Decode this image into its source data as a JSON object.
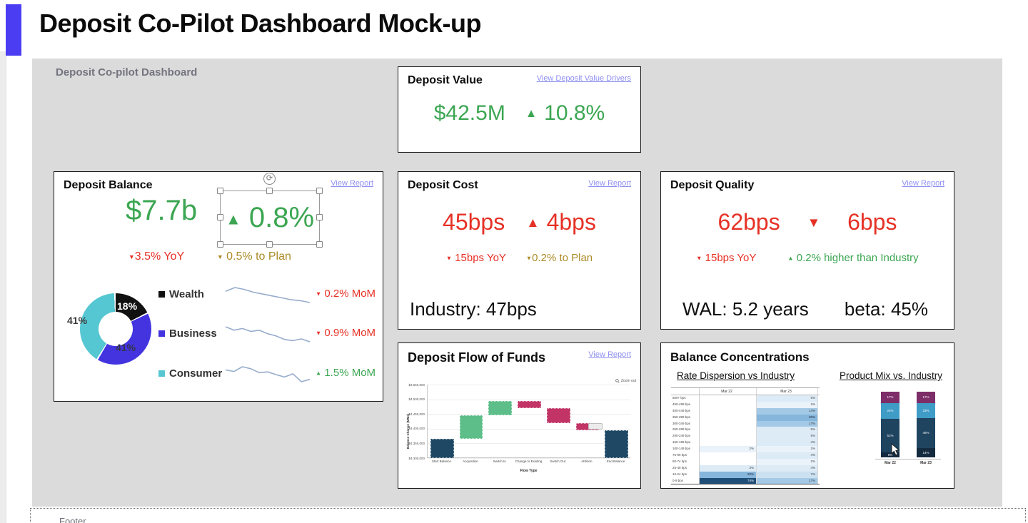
{
  "page": {
    "title": "Deposit Co-Pilot Dashboard Mock-up"
  },
  "canvas": {
    "label": "Deposit Co-pilot Dashboard"
  },
  "footer": {
    "label": "Footer"
  },
  "cards": {
    "deposit_value": {
      "title": "Deposit Value",
      "link": "View Deposit Value Drivers",
      "value": "$42.5M",
      "delta_icon": "▲",
      "delta": "10.8%"
    },
    "deposit_balance": {
      "title": "Deposit Balance",
      "link": "View Report",
      "value": "$7.7b",
      "delta_icon": "▲",
      "delta": "0.8%",
      "yoy_icon": "▼",
      "yoy": "3.5% YoY",
      "plan_icon": "▼",
      "plan": "0.5% to Plan",
      "rows": [
        {
          "label": "Wealth",
          "change_icon": "▼",
          "change": "0.2% MoM"
        },
        {
          "label": "Business",
          "change_icon": "▼",
          "change": "0.9% MoM"
        },
        {
          "label": "Consumer",
          "change_icon": "▲",
          "change": "1.5% MoM"
        }
      ]
    },
    "deposit_cost": {
      "title": "Deposit Cost",
      "link": "View Report",
      "value": "45bps",
      "delta_icon": "▲",
      "delta": "4bps",
      "yoy_icon": "▼",
      "yoy": "15bps YoY",
      "plan_icon": "▼",
      "plan": "0.2% to Plan",
      "industry": "Industry: 47bps"
    },
    "deposit_quality": {
      "title": "Deposit Quality",
      "link": "View Report",
      "value": "62bps",
      "delta_icon": "▼",
      "delta": "6bps",
      "yoy_icon": "▼",
      "yoy": "15bps YoY",
      "industry_icon": "▲",
      "industry_note": "0.2% higher than Industry",
      "wal": "WAL: 5.2 years",
      "beta": "beta: 45%"
    },
    "flow_of_funds": {
      "title": "Deposit Flow of Funds",
      "link": "View Report",
      "zoom_out": "Zoom out"
    },
    "balance_concentrations": {
      "title": "Balance Concentrations",
      "left_subtitle": "Rate Dispersion vs Industry",
      "right_subtitle": "Product Mix vs. Industry"
    }
  },
  "colors": {
    "accent": "#4B3DF2",
    "green": "#3CA652",
    "red": "#E63126",
    "olive": "#AC8B26",
    "link": "#8F8FF2",
    "canvas": "#DBDBDB"
  },
  "chart_data": [
    {
      "id": "balance_mix_donut",
      "type": "pie",
      "labels": [
        "Wealth",
        "Business",
        "Consumer"
      ],
      "values": [
        18,
        41,
        41
      ],
      "colors": [
        "#111111",
        "#4334E0",
        "#55C7D2"
      ],
      "slice_label_texts": [
        "18%",
        "41%",
        "41%"
      ],
      "legend_position": "right"
    },
    {
      "id": "balance_sparklines",
      "type": "line",
      "color": "#96ACCC",
      "series": [
        {
          "name": "Wealth",
          "values": [
            58,
            62,
            60,
            57,
            55,
            53,
            51,
            49,
            48,
            46
          ],
          "change": "-0.2% MoM"
        },
        {
          "name": "Business",
          "values": [
            60,
            54,
            57,
            52,
            54,
            48,
            44,
            38,
            36,
            39,
            34
          ],
          "change": "-0.9% MoM"
        },
        {
          "name": "Consumer",
          "values": [
            52,
            48,
            60,
            55,
            45,
            47,
            40,
            34,
            42,
            22,
            28
          ],
          "change": "+1.5% MoM"
        }
      ]
    },
    {
      "id": "flow_waterfall",
      "type": "bar",
      "title": "Deposit Flow of Funds",
      "xlabel": "Flow Type",
      "ylabel": "Balance Change (MMs)",
      "categories": [
        "Start Balance",
        "Acquisition",
        "Switch In",
        "Change to Existing",
        "Switch Out",
        "Attrition",
        "End Balance"
      ],
      "bar_type": [
        "total",
        "increase",
        "increase",
        "decrease",
        "decrease",
        "decrease",
        "total"
      ],
      "values": [
        4365000,
        80000,
        50000,
        -25000,
        -50000,
        -25000,
        4395000
      ],
      "cumulative": [
        4365000,
        4445000,
        4495000,
        4470000,
        4420000,
        4395000,
        4395000
      ],
      "ylim": [
        4300000,
        4550000
      ],
      "yticks": [
        "$4,550,000",
        "$4,500,000",
        "$4,450,000",
        "$4,400,000",
        "$4,350,000",
        "$4,300,000"
      ],
      "colors": {
        "total": "#1E4864",
        "increase": "#5DBE89",
        "decrease": "#C23465"
      },
      "grid": true
    },
    {
      "id": "rate_dispersion_heatmap",
      "type": "heatmap",
      "columns": [
        "Mar 22",
        "Mar 23"
      ],
      "rows": [
        "500+ bps",
        "450-499 bps",
        "400-449 bps",
        "350-399 bps",
        "300-349 bps",
        "250-299 bps",
        "200-249 bps",
        "150-199 bps",
        "100-149 bps",
        "75-99 bps",
        "50-74 bps",
        "25-49 bps",
        "10-24 bps",
        "0-9 bps"
      ],
      "mar22": [
        0,
        0,
        0,
        0,
        0,
        0,
        0,
        0,
        2,
        0,
        0,
        3,
        20,
        74
      ],
      "mar23": [
        5,
        2,
        14,
        20,
        17,
        5,
        5,
        4,
        2,
        4,
        2,
        4,
        7,
        17
      ]
    },
    {
      "id": "product_mix_stacked",
      "type": "bar",
      "categories": [
        "Mar 22",
        "Mar 23"
      ],
      "series": [
        {
          "name": "segment-top",
          "color": "#7D2D68",
          "values": [
            17,
            17
          ]
        },
        {
          "name": "segment-upper-mid",
          "color": "#3F9CC6",
          "values": [
            24,
            23
          ]
        },
        {
          "name": "segment-lower-mid",
          "color": "#1F4460",
          "values": [
            51,
            46
          ]
        },
        {
          "name": "segment-bottom",
          "color": "#132A3F",
          "values": [
            8,
            14
          ]
        }
      ]
    }
  ]
}
